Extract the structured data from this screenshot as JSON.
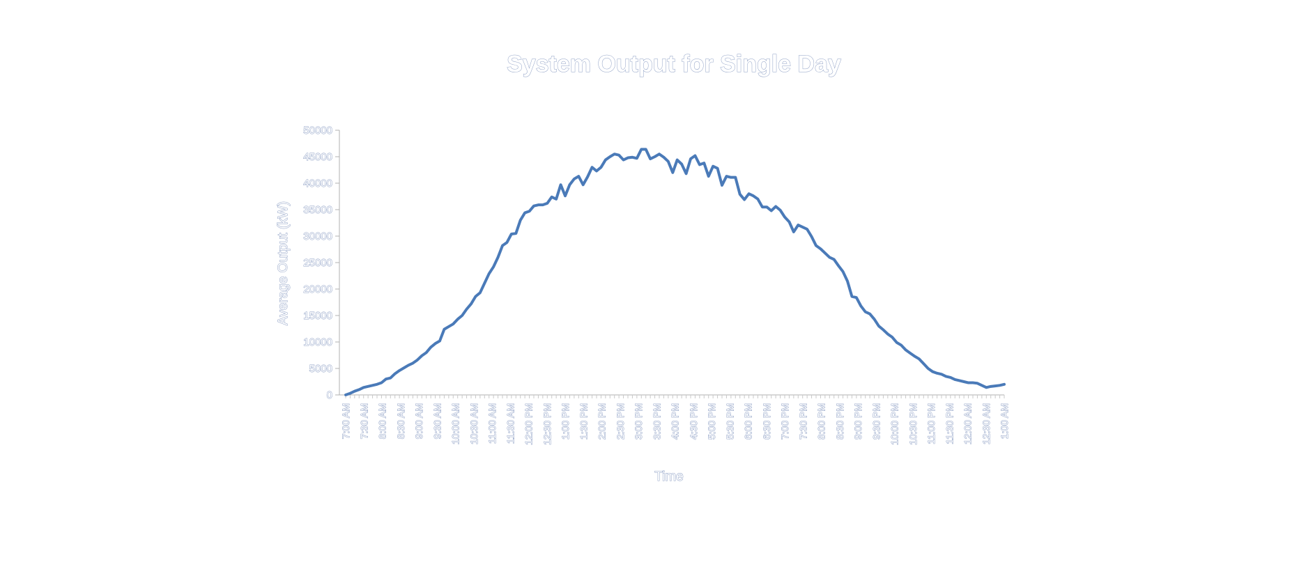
{
  "chart_data": {
    "type": "line",
    "title": "System Output for Single Day",
    "xlabel": "Time",
    "ylabel": "Average Output (kW)",
    "ylim": [
      0,
      50000
    ],
    "y_ticks": [
      "0",
      "5000",
      "10000",
      "15000",
      "20000",
      "25000",
      "30000",
      "35000",
      "40000",
      "45000",
      "50000"
    ],
    "x_tick_labels": [
      "7:00 AM",
      "7:30 AM",
      "8:00 AM",
      "8:30 AM",
      "9:00 AM",
      "9:30 AM",
      "10:00 AM",
      "10:30 AM",
      "11:00 AM",
      "11:30 AM",
      "12:00 PM",
      "12:30 PM",
      "1:00 PM",
      "1:30 PM",
      "2:00 PM",
      "2:30 PM",
      "3:00 PM",
      "3:30 PM",
      "4:00 PM",
      "4:30 PM",
      "5:00 PM",
      "5:30 PM",
      "6:00 PM",
      "6:30 PM",
      "7:00 PM",
      "7:30 PM",
      "8:00 PM",
      "8:30 PM",
      "9:00 PM",
      "9:30 PM",
      "10:00 PM",
      "10:30 PM",
      "11:00 PM",
      "11:30 PM",
      "12:00 AM",
      "12:30 AM",
      "1:00 AM"
    ],
    "grid": false,
    "legend": "none",
    "series": [
      {
        "color": "#4a7ab8",
        "values": [
          0,
          300,
          700,
          1000,
          1400,
          1600,
          1800,
          2000,
          2300,
          3000,
          3200,
          4000,
          4600,
          5100,
          5600,
          6000,
          6600,
          7400,
          8000,
          9000,
          9700,
          10200,
          12400,
          12900,
          13400,
          14300,
          15000,
          16200,
          17200,
          18600,
          19300,
          21100,
          22900,
          24200,
          26000,
          28200,
          28800,
          30400,
          30500,
          33000,
          34400,
          34700,
          35700,
          35900,
          35900,
          36200,
          37400,
          37000,
          39700,
          37600,
          39700,
          40800,
          41300,
          39700,
          41200,
          43000,
          42300,
          43000,
          44400,
          45000,
          45500,
          45300,
          44400,
          44800,
          44900,
          44700,
          46400,
          46400,
          44600,
          45000,
          45500,
          44900,
          44100,
          42000,
          44400,
          43600,
          41800,
          44600,
          45200,
          43500,
          43800,
          41300,
          43200,
          42800,
          39600,
          41300,
          41100,
          41100,
          37900,
          36900,
          38000,
          37600,
          37000,
          35500,
          35500,
          34800,
          35600,
          34900,
          33600,
          32700,
          30800,
          32100,
          31700,
          31300,
          29900,
          28200,
          27600,
          26800,
          26000,
          25600,
          24400,
          23300,
          21500,
          18600,
          18400,
          16800,
          15700,
          15300,
          14300,
          13000,
          12300,
          11500,
          10900,
          9900,
          9400,
          8500,
          7900,
          7300,
          6800,
          5900,
          5000,
          4400,
          4100,
          3900,
          3500,
          3300,
          2900,
          2700,
          2500,
          2300,
          2300,
          2200,
          1800,
          1400,
          1600,
          1700,
          1800,
          2000
        ]
      }
    ]
  }
}
